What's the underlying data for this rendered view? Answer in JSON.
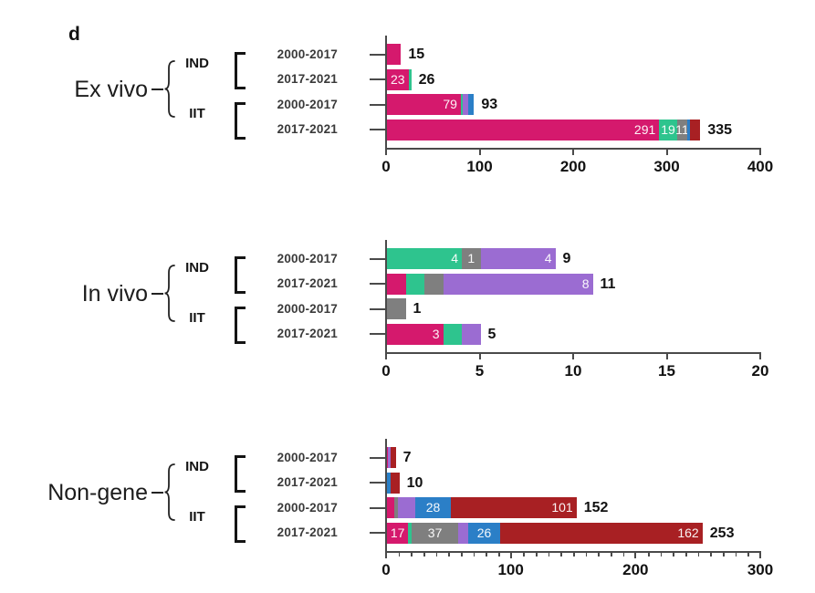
{
  "figure_label": "d",
  "palette": {
    "pink": "#d5196d",
    "green": "#2ec48e",
    "gray": "#7f7f7f",
    "purple": "#9b6cd2",
    "blue": "#2b7fc7",
    "darkred": "#a82023"
  },
  "axis_color": "#4a4a4a",
  "chart_data": [
    {
      "type": "bar",
      "orientation": "horizontal",
      "group": "Ex vivo",
      "subgroups": [
        "IND",
        "IIT"
      ],
      "xlim": [
        0,
        400
      ],
      "xticks": [
        0,
        100,
        200,
        300,
        400
      ],
      "minor_tick_step": null,
      "rows": [
        {
          "subgroup": "IND",
          "period": "2000-2017",
          "total": 15,
          "segments": [
            {
              "color": "pink",
              "value": 15
            }
          ]
        },
        {
          "subgroup": "IND",
          "period": "2017-2021",
          "total": 26,
          "segments": [
            {
              "color": "pink",
              "value": 23,
              "label": "23"
            },
            {
              "color": "green",
              "value": 3
            }
          ]
        },
        {
          "subgroup": "IIT",
          "period": "2000-2017",
          "total": 93,
          "segments": [
            {
              "color": "pink",
              "value": 79,
              "label": "79"
            },
            {
              "color": "green",
              "value": 2
            },
            {
              "color": "purple",
              "value": 6
            },
            {
              "color": "blue",
              "value": 6
            }
          ]
        },
        {
          "subgroup": "IIT",
          "period": "2017-2021",
          "total": 335,
          "segments": [
            {
              "color": "pink",
              "value": 291,
              "label": "291"
            },
            {
              "color": "green",
              "value": 19,
              "label": "19"
            },
            {
              "color": "gray",
              "value": 11,
              "label": "11"
            },
            {
              "color": "blue",
              "value": 3
            },
            {
              "color": "darkred",
              "value": 11
            }
          ]
        }
      ]
    },
    {
      "type": "bar",
      "orientation": "horizontal",
      "group": "In vivo",
      "subgroups": [
        "IND",
        "IIT"
      ],
      "xlim": [
        0,
        20
      ],
      "xticks": [
        0,
        5,
        10,
        15,
        20
      ],
      "minor_tick_step": null,
      "rows": [
        {
          "subgroup": "IND",
          "period": "2000-2017",
          "total": 9,
          "segments": [
            {
              "color": "green",
              "value": 4,
              "label": "4"
            },
            {
              "color": "gray",
              "value": 1,
              "label": "1"
            },
            {
              "color": "purple",
              "value": 4,
              "label": "4"
            }
          ]
        },
        {
          "subgroup": "IND",
          "period": "2017-2021",
          "total": 11,
          "segments": [
            {
              "color": "pink",
              "value": 1
            },
            {
              "color": "green",
              "value": 1
            },
            {
              "color": "gray",
              "value": 1
            },
            {
              "color": "purple",
              "value": 8,
              "label": "8"
            }
          ]
        },
        {
          "subgroup": "IIT",
          "period": "2000-2017",
          "total": 1,
          "segments": [
            {
              "color": "gray",
              "value": 1
            }
          ]
        },
        {
          "subgroup": "IIT",
          "period": "2017-2021",
          "total": 5,
          "segments": [
            {
              "color": "pink",
              "value": 3,
              "label": "3"
            },
            {
              "color": "green",
              "value": 1
            },
            {
              "color": "purple",
              "value": 1
            }
          ]
        }
      ]
    },
    {
      "type": "bar",
      "orientation": "horizontal",
      "group": "Non-gene",
      "subgroups": [
        "IND",
        "IIT"
      ],
      "xlim": [
        0,
        300
      ],
      "xticks": [
        0,
        100,
        200,
        300
      ],
      "minor_tick_step": 10,
      "rows": [
        {
          "subgroup": "IND",
          "period": "2000-2017",
          "total": 7,
          "segments": [
            {
              "color": "pink",
              "value": 1
            },
            {
              "color": "purple",
              "value": 2
            },
            {
              "color": "darkred",
              "value": 4
            }
          ]
        },
        {
          "subgroup": "IND",
          "period": "2017-2021",
          "total": 10,
          "segments": [
            {
              "color": "blue",
              "value": 3
            },
            {
              "color": "darkred",
              "value": 7
            }
          ]
        },
        {
          "subgroup": "IIT",
          "period": "2000-2017",
          "total": 152,
          "segments": [
            {
              "color": "pink",
              "value": 6
            },
            {
              "color": "gray",
              "value": 3
            },
            {
              "color": "purple",
              "value": 14
            },
            {
              "color": "blue",
              "value": 28,
              "label": "28"
            },
            {
              "color": "darkred",
              "value": 101,
              "label": "101"
            }
          ]
        },
        {
          "subgroup": "IIT",
          "period": "2017-2021",
          "total": 253,
          "segments": [
            {
              "color": "pink",
              "value": 17,
              "label": "17"
            },
            {
              "color": "green",
              "value": 3
            },
            {
              "color": "gray",
              "value": 37,
              "label": "37"
            },
            {
              "color": "purple",
              "value": 8
            },
            {
              "color": "blue",
              "value": 26,
              "label": "26"
            },
            {
              "color": "darkred",
              "value": 162,
              "label": "162"
            }
          ]
        }
      ]
    }
  ]
}
